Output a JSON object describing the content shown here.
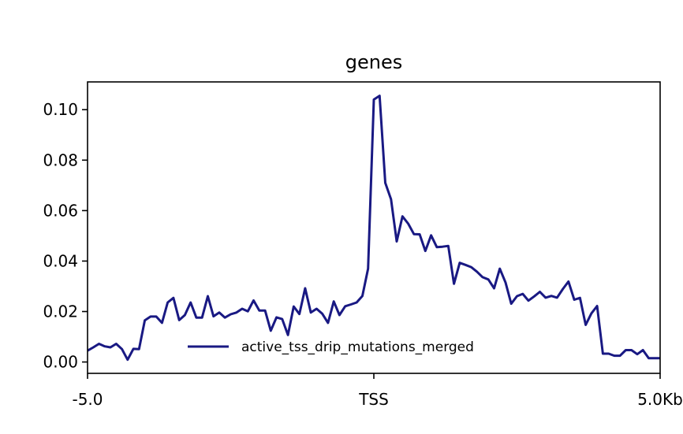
{
  "chart_data": {
    "type": "line",
    "title": "genes",
    "xlabel": "",
    "ylabel": "",
    "x_ticks": [
      {
        "value": -5.0,
        "label": "-5.0"
      },
      {
        "value": 0.0,
        "label": "TSS"
      },
      {
        "value": 5.0,
        "label": "5.0Kb"
      }
    ],
    "y_ticks": [
      {
        "value": 0.0,
        "label": "0.00"
      },
      {
        "value": 0.02,
        "label": "0.02"
      },
      {
        "value": 0.04,
        "label": "0.04"
      },
      {
        "value": 0.06,
        "label": "0.06"
      },
      {
        "value": 0.08,
        "label": "0.08"
      },
      {
        "value": 0.1,
        "label": "0.10"
      }
    ],
    "xlim": [
      -5.0,
      5.0
    ],
    "ylim": [
      -0.0045,
      0.111
    ],
    "grid": false,
    "legend_position": "lower center",
    "series": [
      {
        "name": "active_tss_drip_mutations_merged",
        "color": "#191983",
        "x": [
          -5.0,
          -4.9,
          -4.8,
          -4.7,
          -4.6,
          -4.5,
          -4.4,
          -4.3,
          -4.2,
          -4.1,
          -4.0,
          -3.9,
          -3.8,
          -3.7,
          -3.6,
          -3.5,
          -3.4,
          -3.3,
          -3.2,
          -3.1,
          -3.0,
          -2.9,
          -2.8,
          -2.7,
          -2.6,
          -2.5,
          -2.4,
          -2.3,
          -2.2,
          -2.1,
          -2.0,
          -1.9,
          -1.8,
          -1.7,
          -1.6,
          -1.5,
          -1.4,
          -1.3,
          -1.2,
          -1.1,
          -1.0,
          -0.9,
          -0.8,
          -0.7,
          -0.6,
          -0.5,
          -0.4,
          -0.3,
          -0.2,
          -0.1,
          0.0,
          0.1,
          0.2,
          0.3,
          0.4,
          0.5,
          0.6,
          0.7,
          0.8,
          0.9,
          1.0,
          1.1,
          1.2,
          1.3,
          1.4,
          1.5,
          1.6,
          1.7,
          1.8,
          1.9,
          2.0,
          2.1,
          2.2,
          2.3,
          2.4,
          2.5,
          2.6,
          2.7,
          2.8,
          2.9,
          3.0,
          3.1,
          3.2,
          3.3,
          3.4,
          3.5,
          3.6,
          3.7,
          3.8,
          3.9,
          4.0,
          4.1,
          4.2,
          4.3,
          4.4,
          4.5,
          4.6,
          4.7,
          4.8,
          4.9,
          5.0
        ],
        "y": [
          0.0045,
          0.0058,
          0.0072,
          0.0062,
          0.0058,
          0.0072,
          0.0051,
          0.0009,
          0.0052,
          0.0051,
          0.0165,
          0.018,
          0.018,
          0.0155,
          0.0236,
          0.0254,
          0.0166,
          0.0186,
          0.0236,
          0.0176,
          0.0176,
          0.0261,
          0.0181,
          0.0196,
          0.0176,
          0.0189,
          0.0196,
          0.0211,
          0.0201,
          0.0244,
          0.0204,
          0.0204,
          0.0124,
          0.0177,
          0.017,
          0.0107,
          0.022,
          0.019,
          0.0292,
          0.0196,
          0.0211,
          0.0191,
          0.0155,
          0.024,
          0.0186,
          0.0221,
          0.0228,
          0.0236,
          0.0262,
          0.037,
          0.104,
          0.1055,
          0.071,
          0.0645,
          0.0478,
          0.0577,
          0.0548,
          0.0507,
          0.0506,
          0.044,
          0.0502,
          0.0455,
          0.0457,
          0.046,
          0.031,
          0.0393,
          0.0385,
          0.0376,
          0.0358,
          0.0336,
          0.0327,
          0.0292,
          0.037,
          0.0315,
          0.0231,
          0.0261,
          0.027,
          0.0243,
          0.026,
          0.0278,
          0.0255,
          0.0262,
          0.0255,
          0.0289,
          0.0319,
          0.0247,
          0.0254,
          0.0147,
          0.0193,
          0.0222,
          0.0033,
          0.0033,
          0.0025,
          0.0025,
          0.0047,
          0.0047,
          0.0031,
          0.0047,
          0.0015,
          0.0015,
          0.0015
        ]
      }
    ]
  }
}
